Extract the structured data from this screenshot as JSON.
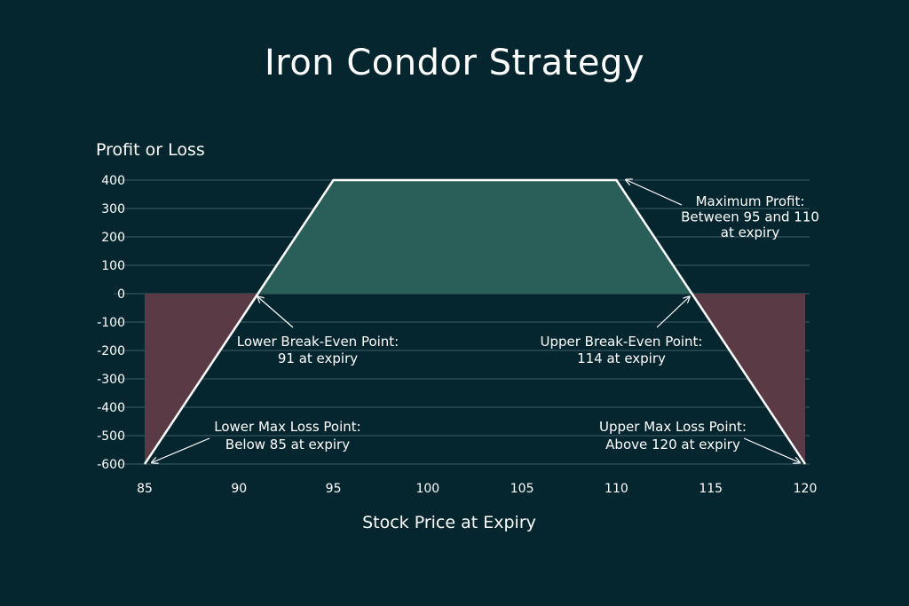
{
  "chart_data": {
    "type": "area",
    "title": "Iron Condor Strategy",
    "xlabel": "Stock Price at Expiry",
    "ylabel": "Profit or Loss",
    "xlim": [
      85,
      120
    ],
    "ylim": [
      -600,
      400
    ],
    "x_ticks": [
      85,
      90,
      95,
      100,
      105,
      110,
      115,
      120
    ],
    "y_ticks": [
      400,
      300,
      200,
      100,
      0,
      -100,
      -200,
      -300,
      -400,
      -500,
      -600
    ],
    "grid": true,
    "series": [
      {
        "x": [
          85,
          91,
          95,
          110,
          114,
          120
        ],
        "y": [
          -600,
          0,
          400,
          400,
          0,
          -600
        ]
      }
    ],
    "colors": {
      "profit": "#2a5e58",
      "loss": "#5a3a45",
      "line": "#ffffff",
      "grid": "#3f5c63",
      "background": "#06262f"
    },
    "annotations": [
      {
        "key": "max_profit",
        "lines": [
          "Maximum Profit:",
          "Between 95 and 110",
          "at expiry"
        ],
        "point": [
          110,
          400
        ]
      },
      {
        "key": "lower_be",
        "lines": [
          "Lower Break-Even Point:",
          "91 at expiry"
        ],
        "point": [
          91,
          0
        ]
      },
      {
        "key": "upper_be",
        "lines": [
          "Upper Break-Even Point:",
          "114 at expiry"
        ],
        "point": [
          114,
          0
        ]
      },
      {
        "key": "lower_ml",
        "lines": [
          "Lower Max Loss Point:",
          "Below 85 at expiry"
        ],
        "point": [
          85,
          -600
        ]
      },
      {
        "key": "upper_ml",
        "lines": [
          "Upper Max Loss Point:",
          "Above 120 at expiry"
        ],
        "point": [
          120,
          -600
        ]
      }
    ]
  }
}
